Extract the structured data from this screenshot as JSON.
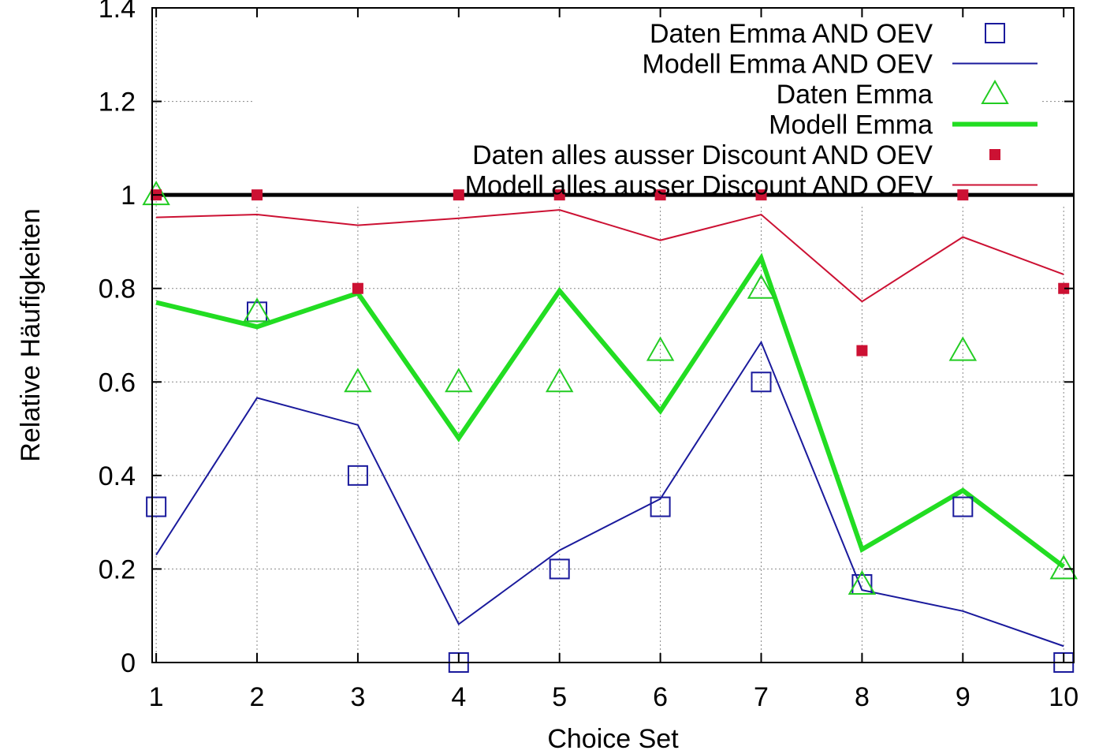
{
  "chart_data": {
    "type": "line",
    "xlabel": "Choice Set",
    "ylabel": "Relative Häufigkeiten",
    "xlim": [
      0.96,
      10.1
    ],
    "ylim": [
      0,
      1.4
    ],
    "x_ticks": [
      1,
      2,
      3,
      4,
      5,
      6,
      7,
      8,
      9,
      10
    ],
    "x_tick_labels": [
      "1",
      "2",
      "3",
      "4",
      "5",
      "6",
      "7",
      "8",
      "9",
      "10"
    ],
    "y_ticks": [
      0,
      0.2,
      0.4,
      0.6,
      0.8,
      1.0,
      1.2,
      1.4
    ],
    "y_tick_labels": [
      "0",
      "0.2",
      "0.4",
      "0.6",
      "0.8",
      "1",
      "1.2",
      "1.4"
    ],
    "grid": true,
    "legend_position": "top-right",
    "reference_line": {
      "y": 1.0,
      "color": "#000000"
    },
    "series": [
      {
        "name": "Daten  Emma AND OEV",
        "style": "open-square",
        "color": "#1a1a9c",
        "x": [
          1,
          2,
          3,
          4,
          5,
          6,
          7,
          8,
          9,
          10
        ],
        "y": [
          0.333,
          0.75,
          0.4,
          0.0,
          0.2,
          0.333,
          0.6,
          0.167,
          0.333,
          0.0
        ]
      },
      {
        "name": "Modell Emma AND OEV",
        "style": "thin-line",
        "color": "#1a1a9c",
        "x": [
          1,
          2,
          3,
          4,
          5,
          6,
          7,
          8,
          9,
          10
        ],
        "y": [
          0.23,
          0.566,
          0.508,
          0.082,
          0.24,
          0.35,
          0.685,
          0.155,
          0.11,
          0.035
        ]
      },
      {
        "name": "Daten  Emma",
        "style": "open-triangle",
        "color": "#22cc22",
        "x": [
          1,
          2,
          3,
          4,
          5,
          6,
          7,
          8,
          9,
          10
        ],
        "y": [
          1.0,
          0.75,
          0.6,
          0.6,
          0.6,
          0.667,
          0.8,
          0.167,
          0.667,
          0.2
        ]
      },
      {
        "name": "Modell Emma",
        "style": "thick-line",
        "color": "#22dd22",
        "x": [
          1,
          2,
          3,
          4,
          5,
          6,
          7,
          8,
          9,
          10
        ],
        "y": [
          0.77,
          0.718,
          0.79,
          0.48,
          0.795,
          0.538,
          0.865,
          0.242,
          0.368,
          0.205
        ]
      },
      {
        "name": "Daten  alles ausser Discount AND OEV",
        "style": "filled-square",
        "color": "#cc1133",
        "x": [
          1,
          2,
          3,
          4,
          5,
          6,
          7,
          8,
          9,
          10
        ],
        "y": [
          1.0,
          1.0,
          0.8,
          1.0,
          1.0,
          1.0,
          1.0,
          0.667,
          1.0,
          0.8
        ]
      },
      {
        "name": "Modell alles ausser Discount AND OEV",
        "style": "thin-line",
        "color": "#cc1133",
        "x": [
          1,
          2,
          3,
          4,
          5,
          6,
          7,
          8,
          9,
          10
        ],
        "y": [
          0.952,
          0.958,
          0.935,
          0.95,
          0.968,
          0.903,
          0.958,
          0.772,
          0.91,
          0.83
        ]
      }
    ]
  }
}
